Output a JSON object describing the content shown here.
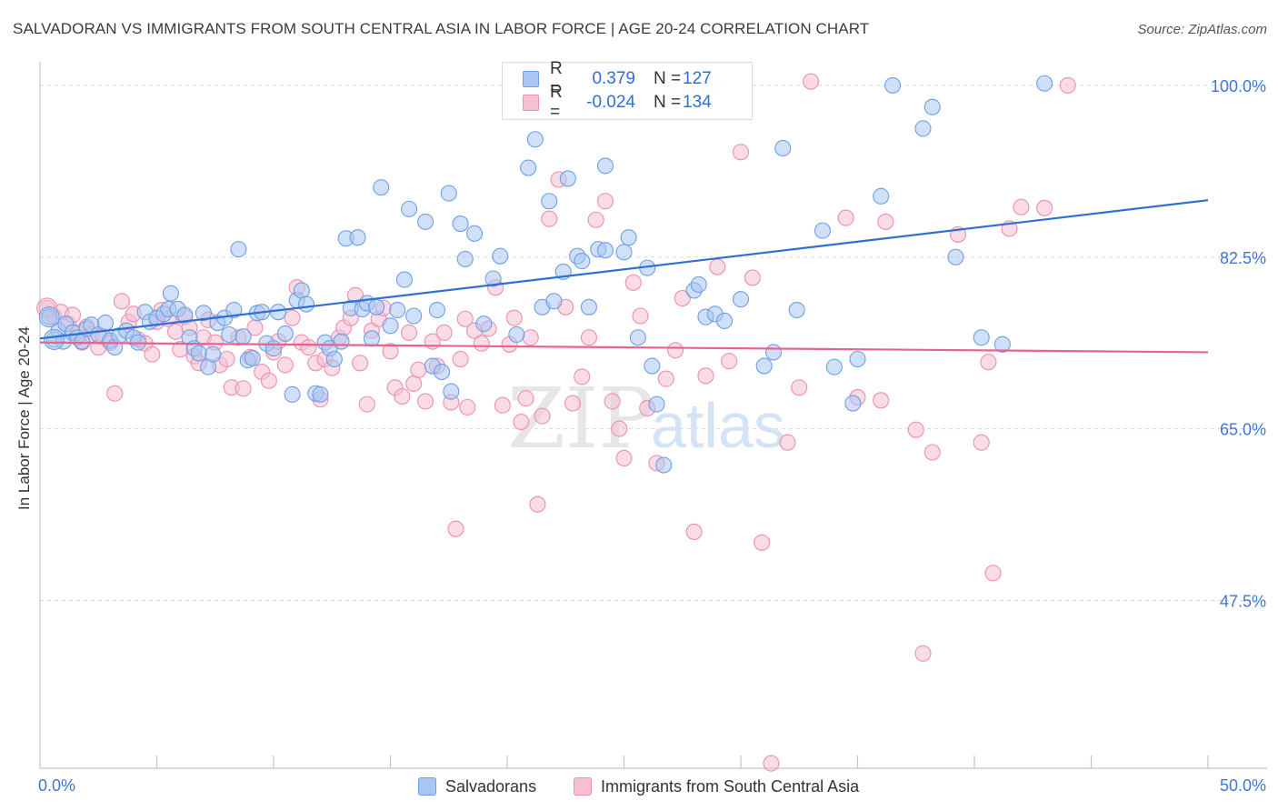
{
  "header": {
    "title": "SALVADORAN VS IMMIGRANTS FROM SOUTH CENTRAL ASIA IN LABOR FORCE | AGE 20-24 CORRELATION CHART",
    "source": "Source: ZipAtlas.com"
  },
  "watermark": {
    "zip": "ZIP",
    "atlas": "atlas"
  },
  "colors": {
    "blue": "#6f9fe6",
    "blue_fill": "#a9c6f2",
    "blue_line": "#2e6fd4",
    "pink": "#ee8fb0",
    "pink_fill": "#f6bfd2",
    "pink_line": "#e8628f",
    "tick_label": "#3f76d6",
    "grid": "#d9d9d9"
  },
  "legend": {
    "series": [
      {
        "r_label": "R =",
        "r_value": "0.379",
        "n_label": "N =",
        "n_value": "127"
      },
      {
        "r_label": "R =",
        "r_value": "-0.024",
        "n_label": "N =",
        "n_value": "134"
      }
    ]
  },
  "chart_data": {
    "type": "scatter",
    "title": "SALVADORAN VS IMMIGRANTS FROM SOUTH CENTRAL ASIA IN LABOR FORCE | AGE 20-24 CORRELATION CHART",
    "xlabel": "",
    "ylabel": "In Labor Force | Age 20-24",
    "xlim": [
      0,
      50
    ],
    "ylim": [
      30.4,
      102.4
    ],
    "x_tick_labels": [
      "0.0%",
      "50.0%"
    ],
    "y_ticks": [
      47.5,
      65.0,
      82.5,
      100.0
    ],
    "y_tick_labels": [
      "47.5%",
      "65.0%",
      "82.5%",
      "100.0%"
    ],
    "grid": "horizontal dashed",
    "legend_placement": "bottom",
    "series": [
      {
        "name": "Salvadorans",
        "r": 0.379,
        "n": 127,
        "trend": {
          "x": [
            0,
            50
          ],
          "y": [
            74.2,
            88.3
          ]
        },
        "points": [
          [
            0.4,
            76.4
          ],
          [
            0.6,
            74.1
          ],
          [
            0.8,
            75.0
          ],
          [
            1.0,
            73.9
          ],
          [
            1.1,
            75.7
          ],
          [
            1.4,
            74.8
          ],
          [
            1.6,
            74.3
          ],
          [
            1.8,
            73.9
          ],
          [
            2.0,
            75.2
          ],
          [
            2.2,
            75.6
          ],
          [
            2.5,
            74.6
          ],
          [
            2.8,
            75.8
          ],
          [
            3.0,
            74.0
          ],
          [
            3.2,
            73.3
          ],
          [
            3.4,
            74.5
          ],
          [
            3.7,
            75.0
          ],
          [
            4.0,
            74.3
          ],
          [
            4.2,
            73.8
          ],
          [
            4.5,
            76.9
          ],
          [
            4.7,
            75.9
          ],
          [
            5.0,
            76.3
          ],
          [
            5.3,
            76.7
          ],
          [
            5.5,
            77.2
          ],
          [
            5.6,
            78.8
          ],
          [
            5.9,
            77.2
          ],
          [
            6.2,
            76.6
          ],
          [
            6.4,
            74.3
          ],
          [
            6.6,
            73.2
          ],
          [
            6.8,
            72.7
          ],
          [
            7.0,
            76.8
          ],
          [
            7.2,
            71.3
          ],
          [
            7.4,
            72.6
          ],
          [
            7.6,
            75.8
          ],
          [
            7.9,
            76.3
          ],
          [
            8.1,
            74.6
          ],
          [
            8.3,
            77.1
          ],
          [
            8.5,
            83.3
          ],
          [
            8.7,
            74.4
          ],
          [
            8.9,
            72.0
          ],
          [
            9.1,
            72.2
          ],
          [
            9.3,
            76.8
          ],
          [
            9.5,
            76.9
          ],
          [
            9.7,
            73.7
          ],
          [
            10.0,
            73.2
          ],
          [
            10.2,
            76.9
          ],
          [
            10.5,
            74.7
          ],
          [
            10.8,
            68.5
          ],
          [
            11.0,
            78.1
          ],
          [
            11.2,
            79.1
          ],
          [
            11.4,
            77.7
          ],
          [
            11.8,
            68.6
          ],
          [
            12.0,
            68.5
          ],
          [
            12.2,
            73.8
          ],
          [
            12.4,
            73.2
          ],
          [
            12.6,
            72.1
          ],
          [
            12.9,
            73.9
          ],
          [
            13.1,
            84.4
          ],
          [
            13.3,
            77.3
          ],
          [
            13.6,
            84.5
          ],
          [
            13.8,
            77.2
          ],
          [
            14.0,
            77.8
          ],
          [
            14.2,
            74.2
          ],
          [
            14.4,
            77.4
          ],
          [
            14.6,
            89.6
          ],
          [
            15.0,
            75.5
          ],
          [
            15.3,
            77.1
          ],
          [
            15.6,
            80.2
          ],
          [
            15.8,
            87.4
          ],
          [
            16.0,
            76.5
          ],
          [
            16.5,
            86.1
          ],
          [
            16.8,
            71.4
          ],
          [
            17.0,
            77.1
          ],
          [
            17.2,
            70.8
          ],
          [
            17.5,
            89.0
          ],
          [
            17.6,
            68.8
          ],
          [
            18.0,
            85.9
          ],
          [
            18.2,
            82.3
          ],
          [
            18.6,
            84.9
          ],
          [
            19.0,
            75.7
          ],
          [
            19.4,
            80.3
          ],
          [
            19.7,
            82.6
          ],
          [
            20.4,
            74.6
          ],
          [
            20.9,
            91.6
          ],
          [
            21.2,
            94.5
          ],
          [
            21.5,
            77.4
          ],
          [
            21.8,
            88.2
          ],
          [
            22.0,
            78.0
          ],
          [
            22.4,
            81.0
          ],
          [
            22.6,
            90.5
          ],
          [
            23.0,
            82.6
          ],
          [
            23.2,
            82.1
          ],
          [
            23.5,
            77.4
          ],
          [
            23.9,
            83.3
          ],
          [
            24.2,
            83.2
          ],
          [
            24.2,
            91.8
          ],
          [
            25.0,
            83.0
          ],
          [
            25.2,
            84.5
          ],
          [
            25.6,
            74.3
          ],
          [
            26.0,
            81.4
          ],
          [
            26.2,
            71.4
          ],
          [
            26.4,
            67.5
          ],
          [
            26.7,
            61.3
          ],
          [
            27.0,
            100.5
          ],
          [
            28.0,
            79.1
          ],
          [
            28.2,
            79.7
          ],
          [
            28.5,
            76.4
          ],
          [
            28.9,
            76.7
          ],
          [
            29.3,
            76.0
          ],
          [
            30.0,
            78.2
          ],
          [
            31.0,
            71.4
          ],
          [
            31.4,
            72.8
          ],
          [
            31.8,
            93.6
          ],
          [
            32.4,
            77.1
          ],
          [
            33.5,
            85.2
          ],
          [
            34.0,
            71.3
          ],
          [
            34.8,
            67.6
          ],
          [
            35.0,
            72.1
          ],
          [
            36.0,
            88.7
          ],
          [
            36.5,
            100.0
          ],
          [
            37.8,
            95.6
          ],
          [
            38.2,
            97.8
          ],
          [
            39.2,
            82.5
          ],
          [
            40.3,
            74.3
          ],
          [
            41.2,
            73.6
          ],
          [
            43.0,
            100.2
          ]
        ]
      },
      {
        "name": "Immigrants from South Central Asia",
        "r": -0.024,
        "n": 134,
        "trend": {
          "x": [
            0,
            50
          ],
          "y": [
            73.8,
            72.8
          ]
        },
        "points": [
          [
            0.3,
            77.3
          ],
          [
            0.6,
            76.4
          ],
          [
            0.9,
            76.9
          ],
          [
            1.2,
            75.7
          ],
          [
            1.4,
            76.6
          ],
          [
            1.6,
            74.8
          ],
          [
            1.8,
            73.8
          ],
          [
            2.0,
            75.4
          ],
          [
            2.2,
            74.6
          ],
          [
            2.5,
            73.3
          ],
          [
            2.7,
            74.4
          ],
          [
            3.0,
            73.8
          ],
          [
            3.2,
            68.6
          ],
          [
            3.5,
            78.0
          ],
          [
            3.8,
            75.9
          ],
          [
            4.0,
            76.7
          ],
          [
            4.2,
            74.1
          ],
          [
            4.5,
            73.7
          ],
          [
            4.8,
            72.6
          ],
          [
            5.0,
            75.9
          ],
          [
            5.2,
            77.1
          ],
          [
            5.5,
            76.2
          ],
          [
            5.8,
            74.9
          ],
          [
            6.0,
            73.1
          ],
          [
            6.2,
            76.4
          ],
          [
            6.4,
            75.3
          ],
          [
            6.6,
            72.4
          ],
          [
            6.8,
            71.7
          ],
          [
            7.0,
            74.3
          ],
          [
            7.2,
            76.1
          ],
          [
            7.5,
            73.8
          ],
          [
            7.7,
            71.5
          ],
          [
            8.0,
            72.1
          ],
          [
            8.2,
            69.2
          ],
          [
            8.5,
            74.3
          ],
          [
            8.7,
            69.1
          ],
          [
            9.0,
            72.3
          ],
          [
            9.2,
            75.3
          ],
          [
            9.5,
            70.8
          ],
          [
            9.8,
            69.9
          ],
          [
            10.0,
            72.8
          ],
          [
            10.2,
            73.9
          ],
          [
            10.5,
            71.5
          ],
          [
            10.8,
            76.3
          ],
          [
            11.0,
            79.4
          ],
          [
            11.2,
            73.8
          ],
          [
            11.5,
            73.3
          ],
          [
            11.8,
            71.7
          ],
          [
            12.0,
            68.0
          ],
          [
            12.2,
            72.1
          ],
          [
            12.5,
            71.2
          ],
          [
            12.8,
            74.3
          ],
          [
            13.0,
            75.3
          ],
          [
            13.3,
            76.3
          ],
          [
            13.5,
            78.6
          ],
          [
            13.7,
            71.7
          ],
          [
            14.0,
            67.5
          ],
          [
            14.2,
            75.0
          ],
          [
            14.5,
            76.2
          ],
          [
            14.7,
            77.3
          ],
          [
            15.0,
            72.9
          ],
          [
            15.2,
            69.2
          ],
          [
            15.5,
            68.3
          ],
          [
            15.8,
            74.8
          ],
          [
            16.0,
            69.6
          ],
          [
            16.2,
            71.0
          ],
          [
            16.5,
            67.8
          ],
          [
            16.8,
            73.9
          ],
          [
            17.0,
            71.4
          ],
          [
            17.3,
            74.8
          ],
          [
            17.6,
            67.7
          ],
          [
            17.8,
            54.8
          ],
          [
            18.0,
            72.1
          ],
          [
            18.3,
            67.2
          ],
          [
            18.6,
            75.0
          ],
          [
            18.9,
            73.7
          ],
          [
            19.2,
            75.2
          ],
          [
            19.5,
            79.4
          ],
          [
            19.8,
            67.4
          ],
          [
            20.1,
            73.6
          ],
          [
            20.3,
            76.3
          ],
          [
            20.6,
            65.7
          ],
          [
            20.8,
            68.1
          ],
          [
            21.0,
            74.3
          ],
          [
            21.3,
            57.3
          ],
          [
            21.5,
            66.3
          ],
          [
            21.8,
            86.4
          ],
          [
            22.2,
            90.4
          ],
          [
            22.5,
            77.4
          ],
          [
            22.8,
            67.6
          ],
          [
            23.2,
            70.3
          ],
          [
            23.5,
            74.3
          ],
          [
            23.8,
            86.3
          ],
          [
            24.2,
            88.2
          ],
          [
            24.5,
            67.8
          ],
          [
            24.8,
            65.0
          ],
          [
            25.0,
            62.0
          ],
          [
            25.4,
            79.9
          ],
          [
            25.7,
            76.5
          ],
          [
            26.0,
            67.1
          ],
          [
            26.4,
            61.5
          ],
          [
            26.8,
            70.1
          ],
          [
            27.2,
            73.0
          ],
          [
            27.5,
            78.3
          ],
          [
            28.0,
            54.5
          ],
          [
            28.5,
            70.4
          ],
          [
            28.8,
            100.3
          ],
          [
            29.0,
            81.5
          ],
          [
            29.5,
            71.9
          ],
          [
            30.0,
            93.2
          ],
          [
            30.5,
            80.4
          ],
          [
            30.9,
            53.4
          ],
          [
            31.3,
            30.9
          ],
          [
            32.0,
            63.6
          ],
          [
            32.5,
            69.2
          ],
          [
            33.0,
            100.4
          ],
          [
            34.5,
            86.5
          ],
          [
            35.0,
            68.2
          ],
          [
            36.0,
            67.9
          ],
          [
            37.5,
            64.9
          ],
          [
            37.8,
            42.1
          ],
          [
            38.2,
            62.6
          ],
          [
            39.3,
            84.8
          ],
          [
            40.3,
            63.6
          ],
          [
            40.6,
            71.8
          ],
          [
            40.8,
            50.3
          ],
          [
            41.5,
            85.4
          ],
          [
            42.0,
            87.6
          ],
          [
            43.0,
            87.5
          ],
          [
            44.0,
            100.0
          ],
          [
            36.2,
            86.1
          ],
          [
            18.2,
            76.2
          ]
        ]
      }
    ]
  },
  "bottom_legend": {
    "items": [
      "Salvadorans",
      "Immigrants from South Central Asia"
    ]
  }
}
